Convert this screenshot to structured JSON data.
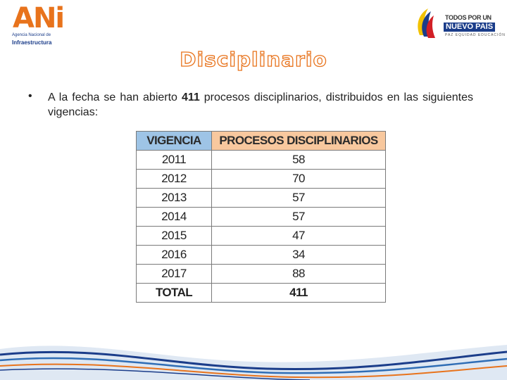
{
  "logo_left": {
    "brand": "ANi",
    "line1": "Agencia Nacional de",
    "line2": "Infraestructura"
  },
  "logo_right": {
    "line1": "TODOS POR UN",
    "line2": "NUEVO PAÍS",
    "line3": "PAZ  EQUIDAD  EDUCACIÓN"
  },
  "title": "Disciplinario",
  "bullet": {
    "before": "A la fecha se han abierto ",
    "count": "411",
    "after": " procesos disciplinarios, distribuidos en las siguientes vigencias:"
  },
  "table": {
    "headers": [
      "VIGENCIA",
      "PROCESOS DISCIPLINARIOS"
    ],
    "rows": [
      [
        "2011",
        "58"
      ],
      [
        "2012",
        "70"
      ],
      [
        "2013",
        "57"
      ],
      [
        "2014",
        "57"
      ],
      [
        "2015",
        "47"
      ],
      [
        "2016",
        "34"
      ],
      [
        "2017",
        "88"
      ]
    ],
    "total": [
      "TOTAL",
      "411"
    ]
  },
  "colors": {
    "accent_orange": "#e8731c",
    "brand_blue": "#1b3d8a",
    "header_blue": "#9ec4e6",
    "header_orange": "#f8c89e"
  }
}
